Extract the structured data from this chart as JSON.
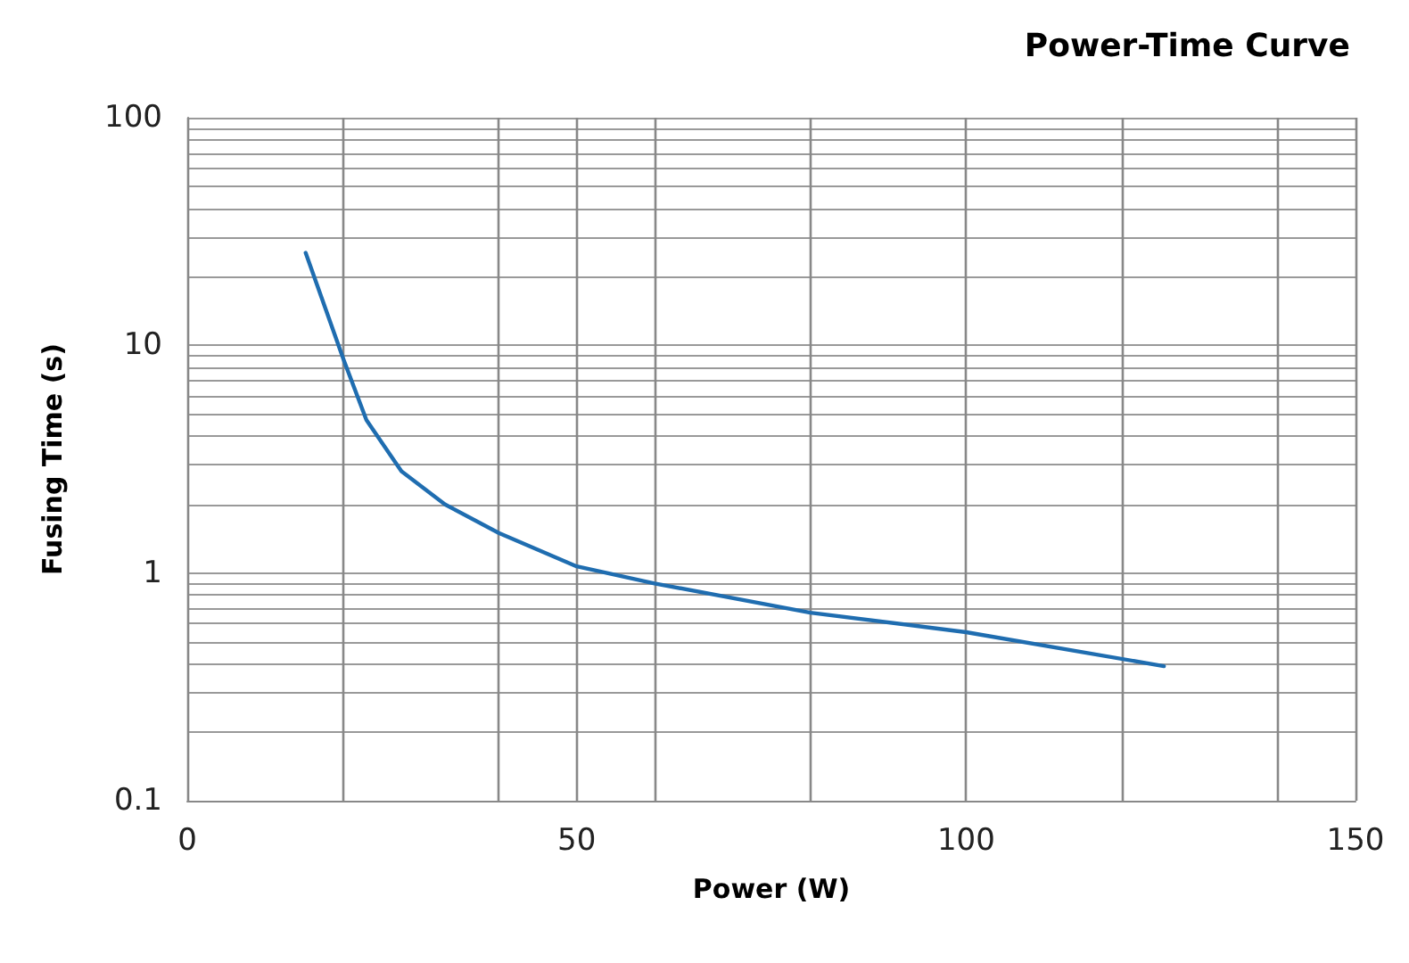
{
  "chart_data": {
    "type": "line",
    "title": "Power-Time Curve",
    "xlabel": "Power (W)",
    "ylabel": "Fusing Time (s)",
    "x": [
      15.2,
      20.1,
      23,
      27.5,
      33.1,
      40,
      50,
      60,
      80,
      100,
      125.4
    ],
    "series": [
      {
        "color": "#1f6db0",
        "values": [
          25.5,
          8.6,
          4.7,
          2.8,
          2.0,
          1.5,
          1.07,
          0.9,
          0.67,
          0.55,
          0.39
        ]
      }
    ],
    "xlim": [
      0,
      150
    ],
    "xticks": [
      0,
      {
        "value": 20,
        "label": null
      },
      {
        "value": 40,
        "label": null
      },
      50,
      {
        "value": 60,
        "label": null
      },
      {
        "value": 80,
        "label": null
      },
      100,
      {
        "value": 120,
        "label": null
      },
      {
        "value": 140,
        "label": null
      },
      150
    ],
    "ylim": [
      0.1,
      100
    ],
    "yticks": [
      0.1,
      {
        "value": 0.2,
        "label": null
      },
      {
        "value": 0.3,
        "label": null
      },
      {
        "value": 0.4,
        "label": null
      },
      {
        "value": 0.5,
        "label": null
      },
      {
        "value": 0.6,
        "label": null
      },
      {
        "value": 0.7,
        "label": null
      },
      {
        "value": 0.8,
        "label": null
      },
      {
        "value": 0.9,
        "label": null
      },
      1,
      {
        "value": 2,
        "label": null
      },
      {
        "value": 3,
        "label": null
      },
      {
        "value": 4,
        "label": null
      },
      {
        "value": 5,
        "label": null
      },
      {
        "value": 6,
        "label": null
      },
      {
        "value": 7,
        "label": null
      },
      {
        "value": 8,
        "label": null
      },
      {
        "value": 9,
        "label": null
      },
      10,
      {
        "value": 20,
        "label": null
      },
      {
        "value": 30,
        "label": null
      },
      {
        "value": 40,
        "label": null
      },
      {
        "value": 50,
        "label": null
      },
      {
        "value": 60,
        "label": null
      },
      {
        "value": 70,
        "label": null
      },
      {
        "value": 80,
        "label": null
      },
      {
        "value": 90,
        "label": null
      },
      100
    ],
    "log": "y",
    "grid": true,
    "line_style": "solid",
    "marker": "none"
  }
}
